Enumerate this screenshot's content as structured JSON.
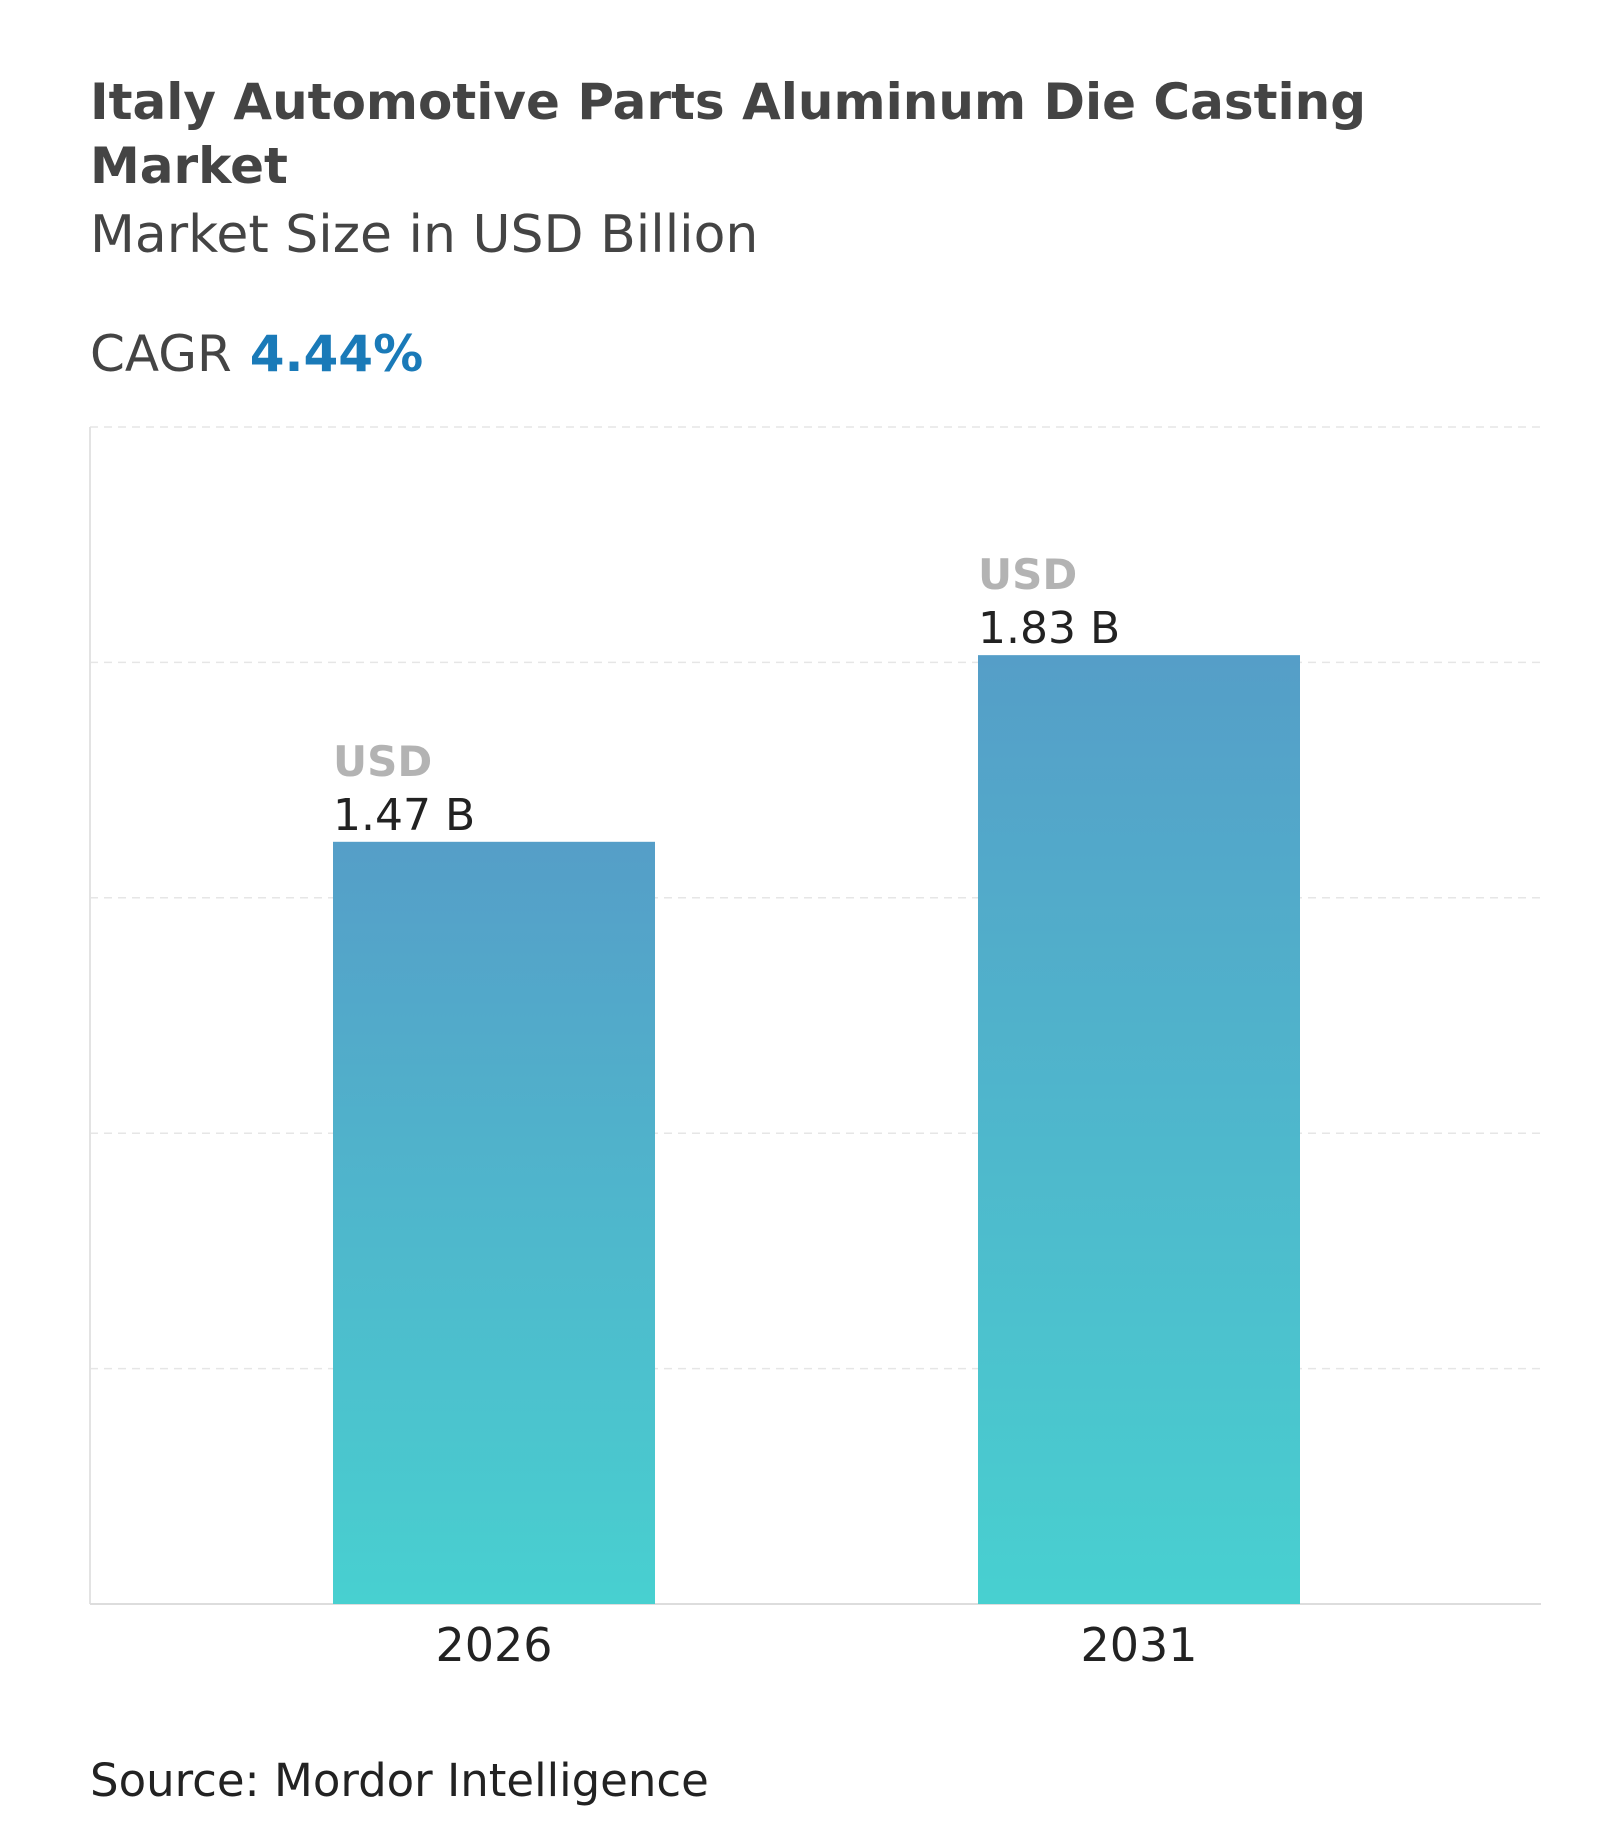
{
  "chart_data": {
    "type": "bar",
    "title": "Italy Automotive Parts Aluminum Die Casting Market",
    "subtitle": "Market Size in USD Billion",
    "cagr_label": "CAGR",
    "cagr": "4.44%",
    "categories": [
      "2026",
      "2031"
    ],
    "values": [
      1.47,
      1.83
    ],
    "value_labels": [
      "1.47 B",
      "1.83 B"
    ],
    "value_prefix": "USD",
    "ylim": [
      0,
      2.27
    ],
    "grid": true,
    "color": [
      "#559ec8",
      "#48d0d0"
    ],
    "source": "Source: Mordor Intelligence"
  }
}
